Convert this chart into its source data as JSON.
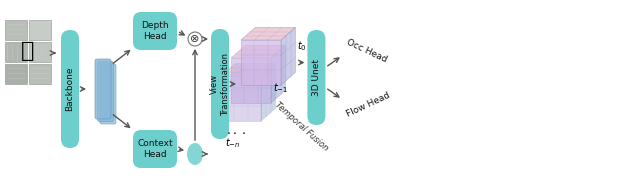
{
  "fig_width": 6.4,
  "fig_height": 1.78,
  "dpi": 100,
  "background_color": "#ffffff",
  "teal_color": "#6dcfcc",
  "teal_dark": "#4bbfbc",
  "blue_feat": "#90b8d8",
  "blue_feat_edge": "#6090b8",
  "arrow_color": "#555555",
  "backbone_label": "Backbone",
  "depth_head_label": "Depth\nHead",
  "context_head_label": "Context\nHead",
  "view_transform_label": "View\nTransformation",
  "unet_label": "3D Unet",
  "occ_head_label": "Occ Head",
  "flow_head_label": "Flow Head",
  "temporal_fusion_label": "Temporal Fusion",
  "multiply_symbol": "⊗",
  "voxel_front_t0": "#d4b8e8",
  "voxel_top_t0": "#e8b8c8",
  "voxel_side_t0": "#b8b8e0",
  "voxel_front_t1": "#c0a8e0",
  "voxel_top_t1": "#d8a8c0",
  "voxel_side_t1": "#a0a8d8",
  "voxel_front_tn": "#a898d0",
  "voxel_top_tn": "#c898b0",
  "voxel_side_tn": "#8898c8",
  "voxel_grid_color": "#9090c0"
}
